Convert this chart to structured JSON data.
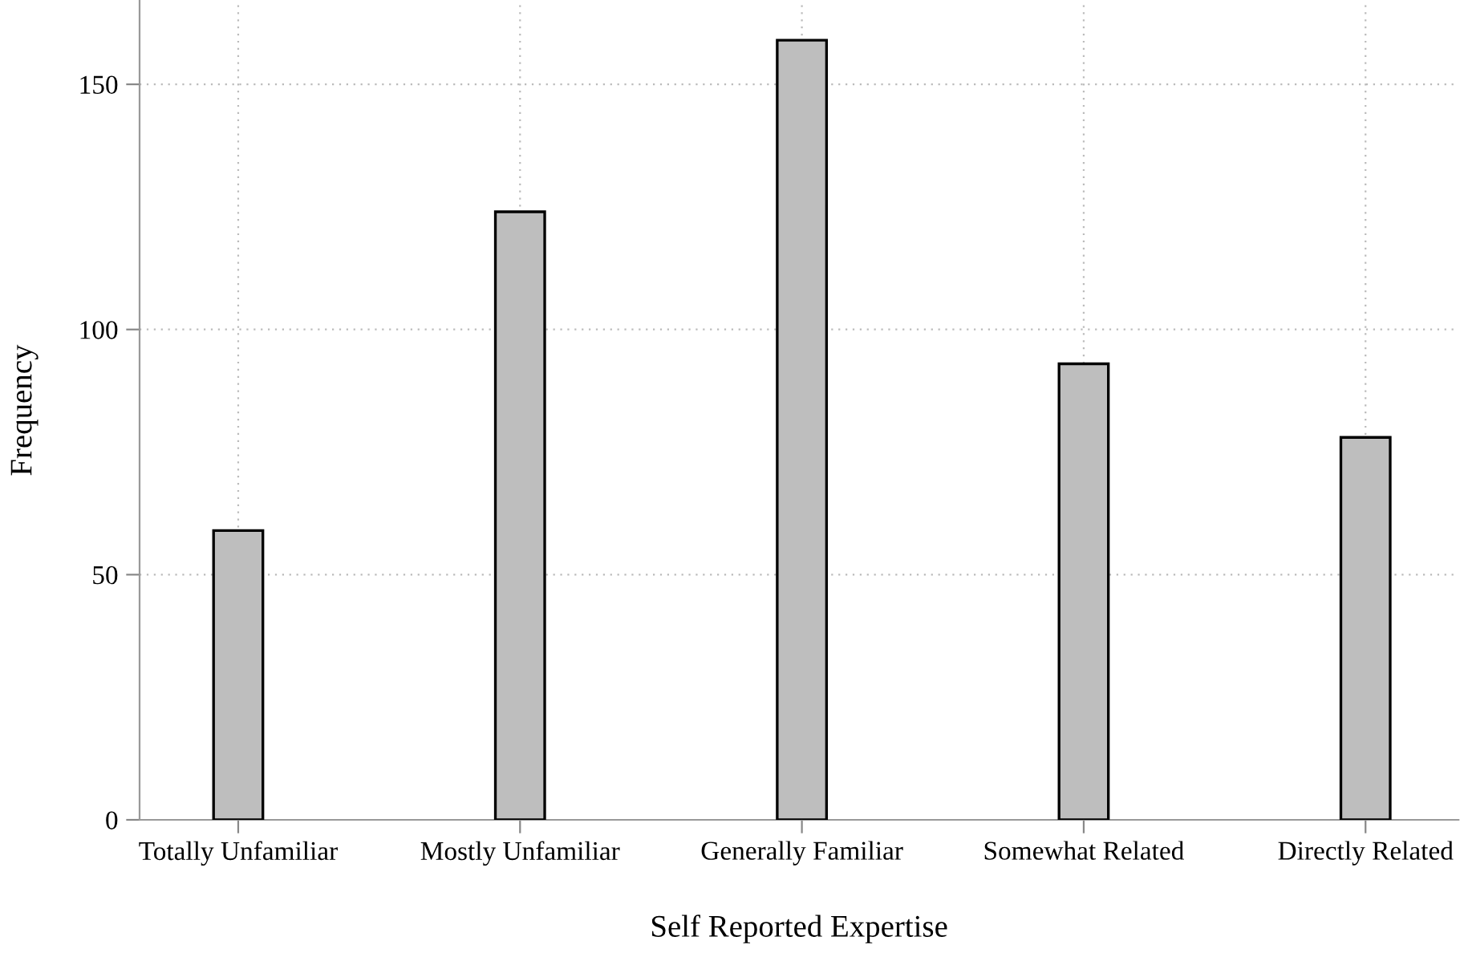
{
  "chart_data": {
    "type": "bar",
    "xlabel": "Self Reported Expertise",
    "ylabel": "Frequency",
    "categories": [
      "Totally Unfamiliar",
      "Mostly Unfamiliar",
      "Generally Familiar",
      "Somewhat Related",
      "Directly Related"
    ],
    "values": [
      59,
      124,
      159,
      93,
      78
    ],
    "color": "#bebebe",
    "ylim": [
      0,
      167
    ],
    "yticks": [
      0,
      50,
      100,
      150
    ],
    "grid": true
  }
}
